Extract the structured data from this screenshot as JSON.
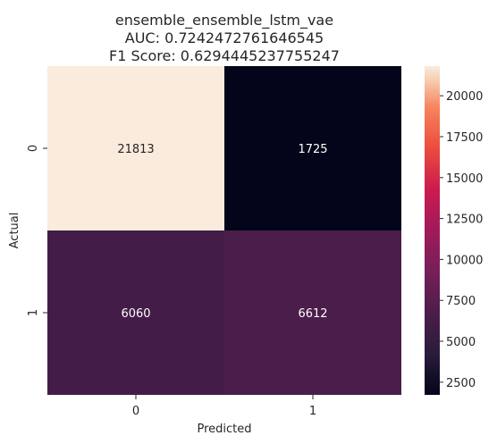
{
  "chart_data": {
    "type": "heatmap",
    "title_lines": [
      "ensemble_ensemble_lstm_vae",
      "AUC: 0.7242472761646545",
      "F1 Score: 0.6294445237755247"
    ],
    "xlabel": "Predicted",
    "ylabel": "Actual",
    "x_categories": [
      "0",
      "1"
    ],
    "y_categories": [
      "0",
      "1"
    ],
    "matrix": [
      [
        21813,
        1725
      ],
      [
        6060,
        6612
      ]
    ],
    "cell_labels": [
      [
        "21813",
        "1725"
      ],
      [
        "6060",
        "6612"
      ]
    ],
    "colormap": "rocket",
    "colorbar": {
      "range": [
        1725,
        21813
      ],
      "ticks": [
        2500,
        5000,
        7500,
        10000,
        12500,
        15000,
        17500,
        20000
      ],
      "tick_labels": [
        "2500",
        "5000",
        "7500",
        "10000",
        "12500",
        "15000",
        "17500",
        "20000"
      ]
    },
    "cell_text_colors": {
      "light": "#ffffff",
      "dark": "#262626"
    }
  }
}
